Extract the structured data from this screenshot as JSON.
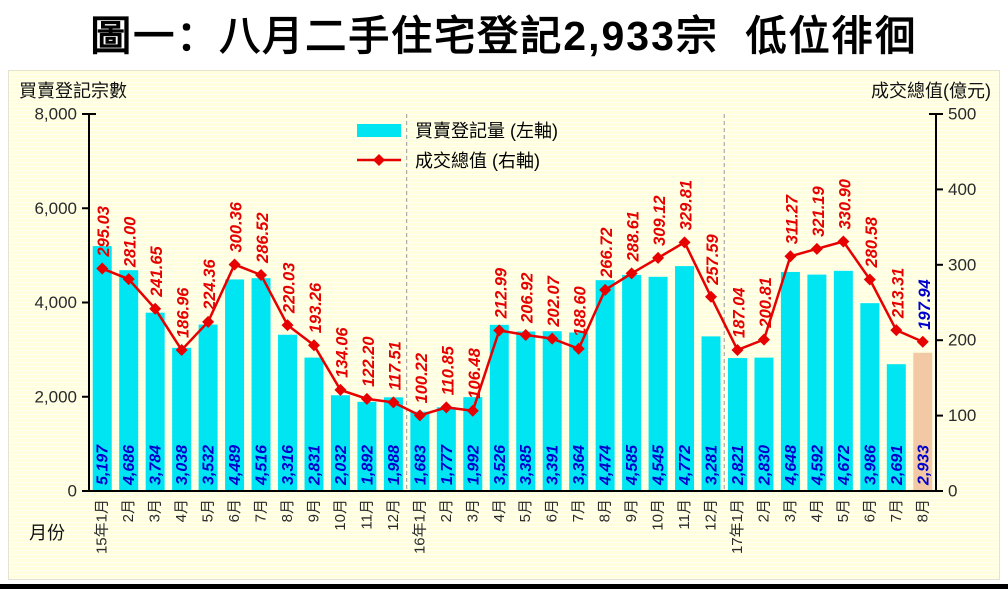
{
  "title": "圖一：八月二手住宅登記2,933宗  低位徘徊",
  "chart": {
    "left_axis_title": "買賣登記宗數",
    "right_axis_title": "成交總值(億元)",
    "x_axis_title": "月份",
    "legend": [
      {
        "label": "買賣登記量 (左軸)",
        "type": "bar"
      },
      {
        "label": "成交總值 (右軸)",
        "type": "line"
      }
    ]
  },
  "colors": {
    "bar": "#00e5f2",
    "highlight_bar": "#f2c9a4",
    "line": "#e60000",
    "bar_label": "#0000cd",
    "line_label": "#e60000",
    "last_line_label": "#0000cd",
    "tick_text": "#2a2a2a",
    "separator": "#aaaaaa",
    "axis": "#000000"
  },
  "chart_data": {
    "type": "bar+line",
    "categories": [
      "15年1月",
      "2月",
      "3月",
      "4月",
      "5月",
      "6月",
      "7月",
      "8月",
      "9月",
      "10月",
      "11月",
      "12月",
      "16年1月",
      "2月",
      "3月",
      "4月",
      "5月",
      "6月",
      "7月",
      "8月",
      "9月",
      "10月",
      "11月",
      "12月",
      "17年1月",
      "2月",
      "3月",
      "4月",
      "5月",
      "6月",
      "7月",
      "8月"
    ],
    "series": [
      {
        "name": "買賣登記量 (左軸)",
        "type": "bar",
        "axis": "left",
        "values": [
          5197,
          4686,
          3784,
          3038,
          3532,
          4489,
          4516,
          3316,
          2831,
          2032,
          1892,
          1988,
          1683,
          1777,
          1992,
          3526,
          3385,
          3391,
          3364,
          4474,
          4585,
          4545,
          4772,
          3281,
          2821,
          2830,
          4648,
          4592,
          4672,
          3986,
          2691,
          2933
        ],
        "labels": [
          "5,197",
          "4,686",
          "3,784",
          "3,038",
          "3,532",
          "4,489",
          "4,516",
          "3,316",
          "2,831",
          "2,032",
          "1,892",
          "1,988",
          "1,683",
          "1,777",
          "1,992",
          "3,526",
          "3,385",
          "3,391",
          "3,364",
          "4,474",
          "4,585",
          "4,545",
          "4,772",
          "3,281",
          "2,821",
          "2,830",
          "4,648",
          "4,592",
          "4,672",
          "3,986",
          "2,691",
          "2,933"
        ]
      },
      {
        "name": "成交總值 (右軸)",
        "type": "line",
        "axis": "right",
        "values": [
          295.03,
          281.0,
          241.65,
          186.96,
          224.36,
          300.36,
          286.52,
          220.03,
          193.26,
          134.06,
          122.2,
          117.51,
          100.22,
          110.85,
          106.48,
          212.99,
          206.92,
          202.07,
          188.6,
          266.72,
          288.61,
          309.12,
          329.81,
          257.59,
          187.04,
          200.81,
          311.27,
          321.19,
          330.9,
          280.58,
          213.31,
          197.94
        ],
        "labels": [
          "295.03",
          "281.00",
          "241.65",
          "186.96",
          "224.36",
          "300.36",
          "286.52",
          "220.03",
          "193.26",
          "134.06",
          "122.20",
          "117.51",
          "100.22",
          "110.85",
          "106.48",
          "212.99",
          "206.92",
          "202.07",
          "188.60",
          "266.72",
          "288.61",
          "309.12",
          "329.81",
          "257.59",
          "187.04",
          "200.81",
          "311.27",
          "321.19",
          "330.90",
          "280.58",
          "213.31",
          "197.94"
        ]
      }
    ],
    "left_axis": {
      "min": 0,
      "max": 8000,
      "tick_labels_top_to_bottom": [
        "8,000",
        "6,000",
        "4,000",
        "2,000",
        "0"
      ]
    },
    "right_axis": {
      "min": 0,
      "max": 500,
      "tick_labels_top_to_bottom": [
        "500",
        "400",
        "300",
        "200",
        "100",
        "0"
      ]
    },
    "year_separator_indices": [
      12,
      24
    ],
    "highlight_last_bar": true,
    "grid": false,
    "legend_position": "top-center-inside"
  }
}
